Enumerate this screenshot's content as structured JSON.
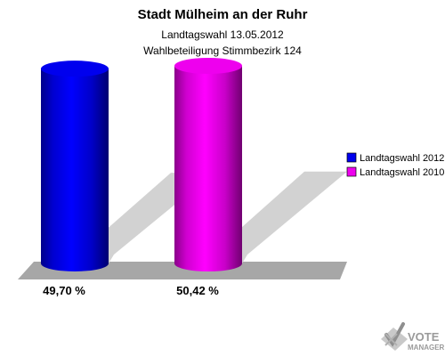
{
  "chart_data": {
    "type": "bar",
    "title": "Stadt Mülheim an der Ruhr",
    "subtitles": [
      "Landtagswahl 13.05.2012",
      "Wahlbeteiligung Stimmbezirk 124"
    ],
    "categories": [
      "Landtagswahl 2012",
      "Landtagswahl 2010"
    ],
    "values": [
      49.7,
      50.42
    ],
    "value_labels": [
      "49,70 %",
      "50,42 %"
    ],
    "ylim": [
      0,
      50.42
    ],
    "legend": {
      "position": "right",
      "entries": [
        "Landtagswahl 2012",
        "Landtagswahl 2010"
      ]
    },
    "grid": false,
    "colors": {
      "Landtagswahl 2012": "#0000ee",
      "Landtagswahl 2010": "#ee00ee"
    }
  },
  "logo": {
    "line1": "VOTE",
    "line2": "MANAGER"
  }
}
